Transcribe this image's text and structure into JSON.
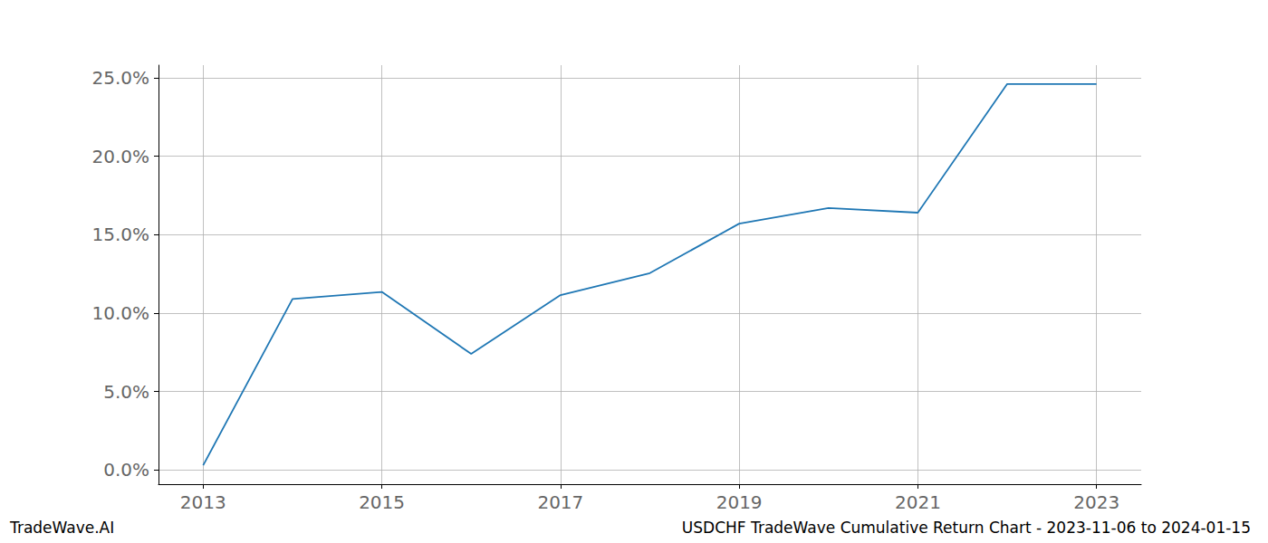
{
  "chart_data": {
    "type": "line",
    "title": "USDCHF TradeWave Cumulative Return Chart - 2023-11-06 to 2024-01-15",
    "annotations": [
      "TradeWave.AI"
    ],
    "x": [
      2013,
      2014,
      2015,
      2016,
      2017,
      2018,
      2019,
      2020,
      2021,
      2022,
      2023
    ],
    "values": [
      0.3,
      10.9,
      11.35,
      7.4,
      11.15,
      12.55,
      15.7,
      16.7,
      16.4,
      24.6,
      24.6
    ],
    "color": "#1f77b4",
    "xlim": [
      2012.5,
      2023.5
    ],
    "xticks": [
      2013,
      2015,
      2017,
      2019,
      2021,
      2023
    ],
    "ylim": [
      -0.9,
      25.8
    ],
    "yticks": [
      {
        "value": 0,
        "label": "0.0%"
      },
      {
        "value": 5,
        "label": "5.0%"
      },
      {
        "value": 10,
        "label": "10.0%"
      },
      {
        "value": 15,
        "label": "15.0%"
      },
      {
        "value": 20,
        "label": "20.0%"
      },
      {
        "value": 25,
        "label": "25.0%"
      }
    ],
    "grid": true
  }
}
